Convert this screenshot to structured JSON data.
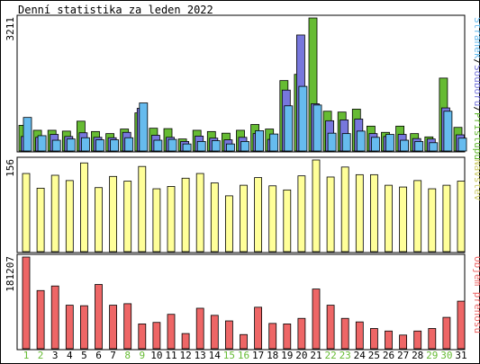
{
  "chart_data": [
    {
      "type": "bar",
      "title": "Denní statistika za leden 2022",
      "ylabel_max": "3211",
      "ylim": [
        0,
        3211
      ],
      "legend": {
        "label": "Přístupů/Souborů/Stránek",
        "parts": [
          {
            "text": "Přístupů",
            "color": "#66bb33"
          },
          {
            "text": "/",
            "color": "#000000"
          },
          {
            "text": "Souborů",
            "color": "#7777dd"
          },
          {
            "text": "/",
            "color": "#000000"
          },
          {
            "text": "Stránek",
            "color": "#66bbee"
          }
        ],
        "placement": "right"
      },
      "categories": [
        "1",
        "2",
        "3",
        "4",
        "5",
        "6",
        "7",
        "8",
        "9",
        "10",
        "11",
        "12",
        "13",
        "14",
        "15",
        "16",
        "17",
        "18",
        "19",
        "20",
        "21",
        "22",
        "23",
        "24",
        "25",
        "26",
        "27",
        "28",
        "29",
        "30",
        "31"
      ],
      "series": [
        {
          "name": "Přístupů",
          "color": "#66bb33",
          "values": [
            620,
            500,
            500,
            480,
            720,
            470,
            420,
            530,
            920,
            550,
            540,
            290,
            500,
            470,
            430,
            500,
            640,
            530,
            1700,
            1850,
            3211,
            960,
            940,
            1010,
            600,
            450,
            600,
            420,
            340,
            1760,
            570
          ]
        },
        {
          "name": "Souborů",
          "color": "#7777dd",
          "values": [
            350,
            330,
            400,
            350,
            440,
            330,
            320,
            450,
            1030,
            380,
            330,
            230,
            360,
            310,
            270,
            330,
            420,
            280,
            1470,
            2800,
            1140,
            730,
            750,
            770,
            420,
            350,
            400,
            300,
            290,
            1040,
            390
          ]
        },
        {
          "name": "Stránek",
          "color": "#66bbee",
          "values": [
            810,
            370,
            260,
            290,
            320,
            270,
            270,
            320,
            1160,
            260,
            280,
            170,
            230,
            250,
            170,
            230,
            490,
            410,
            1090,
            1560,
            1110,
            430,
            420,
            480,
            330,
            400,
            260,
            230,
            200,
            960,
            310
          ]
        }
      ]
    },
    {
      "type": "bar",
      "ylabel_max": "156",
      "ylim": [
        0,
        156
      ],
      "legend": {
        "label": "Návštěv",
        "color": "#ffff99",
        "placement": "right"
      },
      "categories": [
        "1",
        "2",
        "3",
        "4",
        "5",
        "6",
        "7",
        "8",
        "9",
        "10",
        "11",
        "12",
        "13",
        "14",
        "15",
        "16",
        "17",
        "18",
        "19",
        "20",
        "21",
        "22",
        "23",
        "24",
        "25",
        "26",
        "27",
        "28",
        "29",
        "30",
        "31"
      ],
      "series": [
        {
          "name": "Návštěv",
          "color": "#ffff99",
          "values": [
            133,
            108,
            130,
            121,
            151,
            109,
            128,
            120,
            145,
            107,
            111,
            125,
            133,
            117,
            95,
            113,
            126,
            112,
            105,
            129,
            156,
            127,
            144,
            131,
            131,
            113,
            110,
            121,
            107,
            113,
            120
          ]
        }
      ]
    },
    {
      "type": "bar",
      "ylabel_max": "181207",
      "ylim": [
        0,
        181207
      ],
      "legend": {
        "label": "Objem přenosu",
        "color": "#ee6666",
        "placement": "right"
      },
      "categories": [
        "1",
        "2",
        "3",
        "4",
        "5",
        "6",
        "7",
        "8",
        "9",
        "10",
        "11",
        "12",
        "13",
        "14",
        "15",
        "16",
        "17",
        "18",
        "19",
        "20",
        "21",
        "22",
        "23",
        "24",
        "25",
        "26",
        "27",
        "28",
        "29",
        "30",
        "31"
      ],
      "weekend_days": [
        "1",
        "2",
        "8",
        "9",
        "15",
        "16",
        "22",
        "23",
        "29",
        "30"
      ],
      "weekend_color": "#66bb33",
      "series": [
        {
          "name": "Objem přenosu",
          "color": "#ee6666",
          "values": [
            181207,
            115000,
            124000,
            86000,
            85000,
            127000,
            86000,
            89000,
            49000,
            52000,
            68000,
            30000,
            80000,
            66000,
            55000,
            28000,
            82000,
            50000,
            49000,
            60000,
            118000,
            86000,
            60000,
            53000,
            40000,
            35000,
            27000,
            35000,
            40000,
            62000,
            94000
          ]
        }
      ]
    }
  ]
}
